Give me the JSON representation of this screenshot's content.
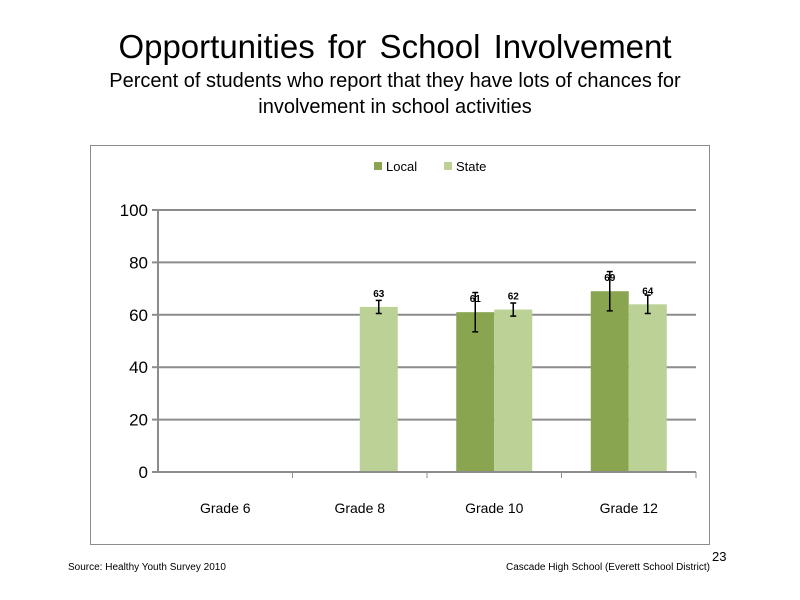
{
  "title": "Opportunities  for School Involvement",
  "subtitle": "Percent of students  who report that they have lots of chances  for involvement  in school activities",
  "footer": {
    "source": "Source: Healthy Youth Survey 2010",
    "school": "Cascade High School (Everett School District)",
    "page_number": "23"
  },
  "colors": {
    "local": "#8aa550",
    "state": "#bcd196",
    "gridline": "#8c8c8c"
  },
  "chart_data": {
    "type": "bar",
    "categories": [
      "Grade 6",
      "Grade 8",
      "Grade 10",
      "Grade 12"
    ],
    "series": [
      {
        "name": "Local",
        "values": [
          null,
          null,
          61,
          69
        ],
        "error_low": [
          null,
          null,
          53.5,
          61.5
        ],
        "error_high": [
          null,
          null,
          68.5,
          76.5
        ]
      },
      {
        "name": "State",
        "values": [
          null,
          63,
          62,
          64
        ],
        "error_low": [
          null,
          60.5,
          59.5,
          60.5
        ],
        "error_high": [
          null,
          65.5,
          64.5,
          67.5
        ]
      }
    ],
    "data_labels": {
      "Local": [
        "",
        "",
        "61",
        "69"
      ],
      "State": [
        "",
        "63",
        "62",
        "64"
      ]
    },
    "ylim": [
      0,
      100
    ],
    "yticks": [
      0,
      20,
      40,
      60,
      80,
      100
    ],
    "grid": true,
    "legend": "top-center",
    "xlabel": "",
    "ylabel": ""
  }
}
